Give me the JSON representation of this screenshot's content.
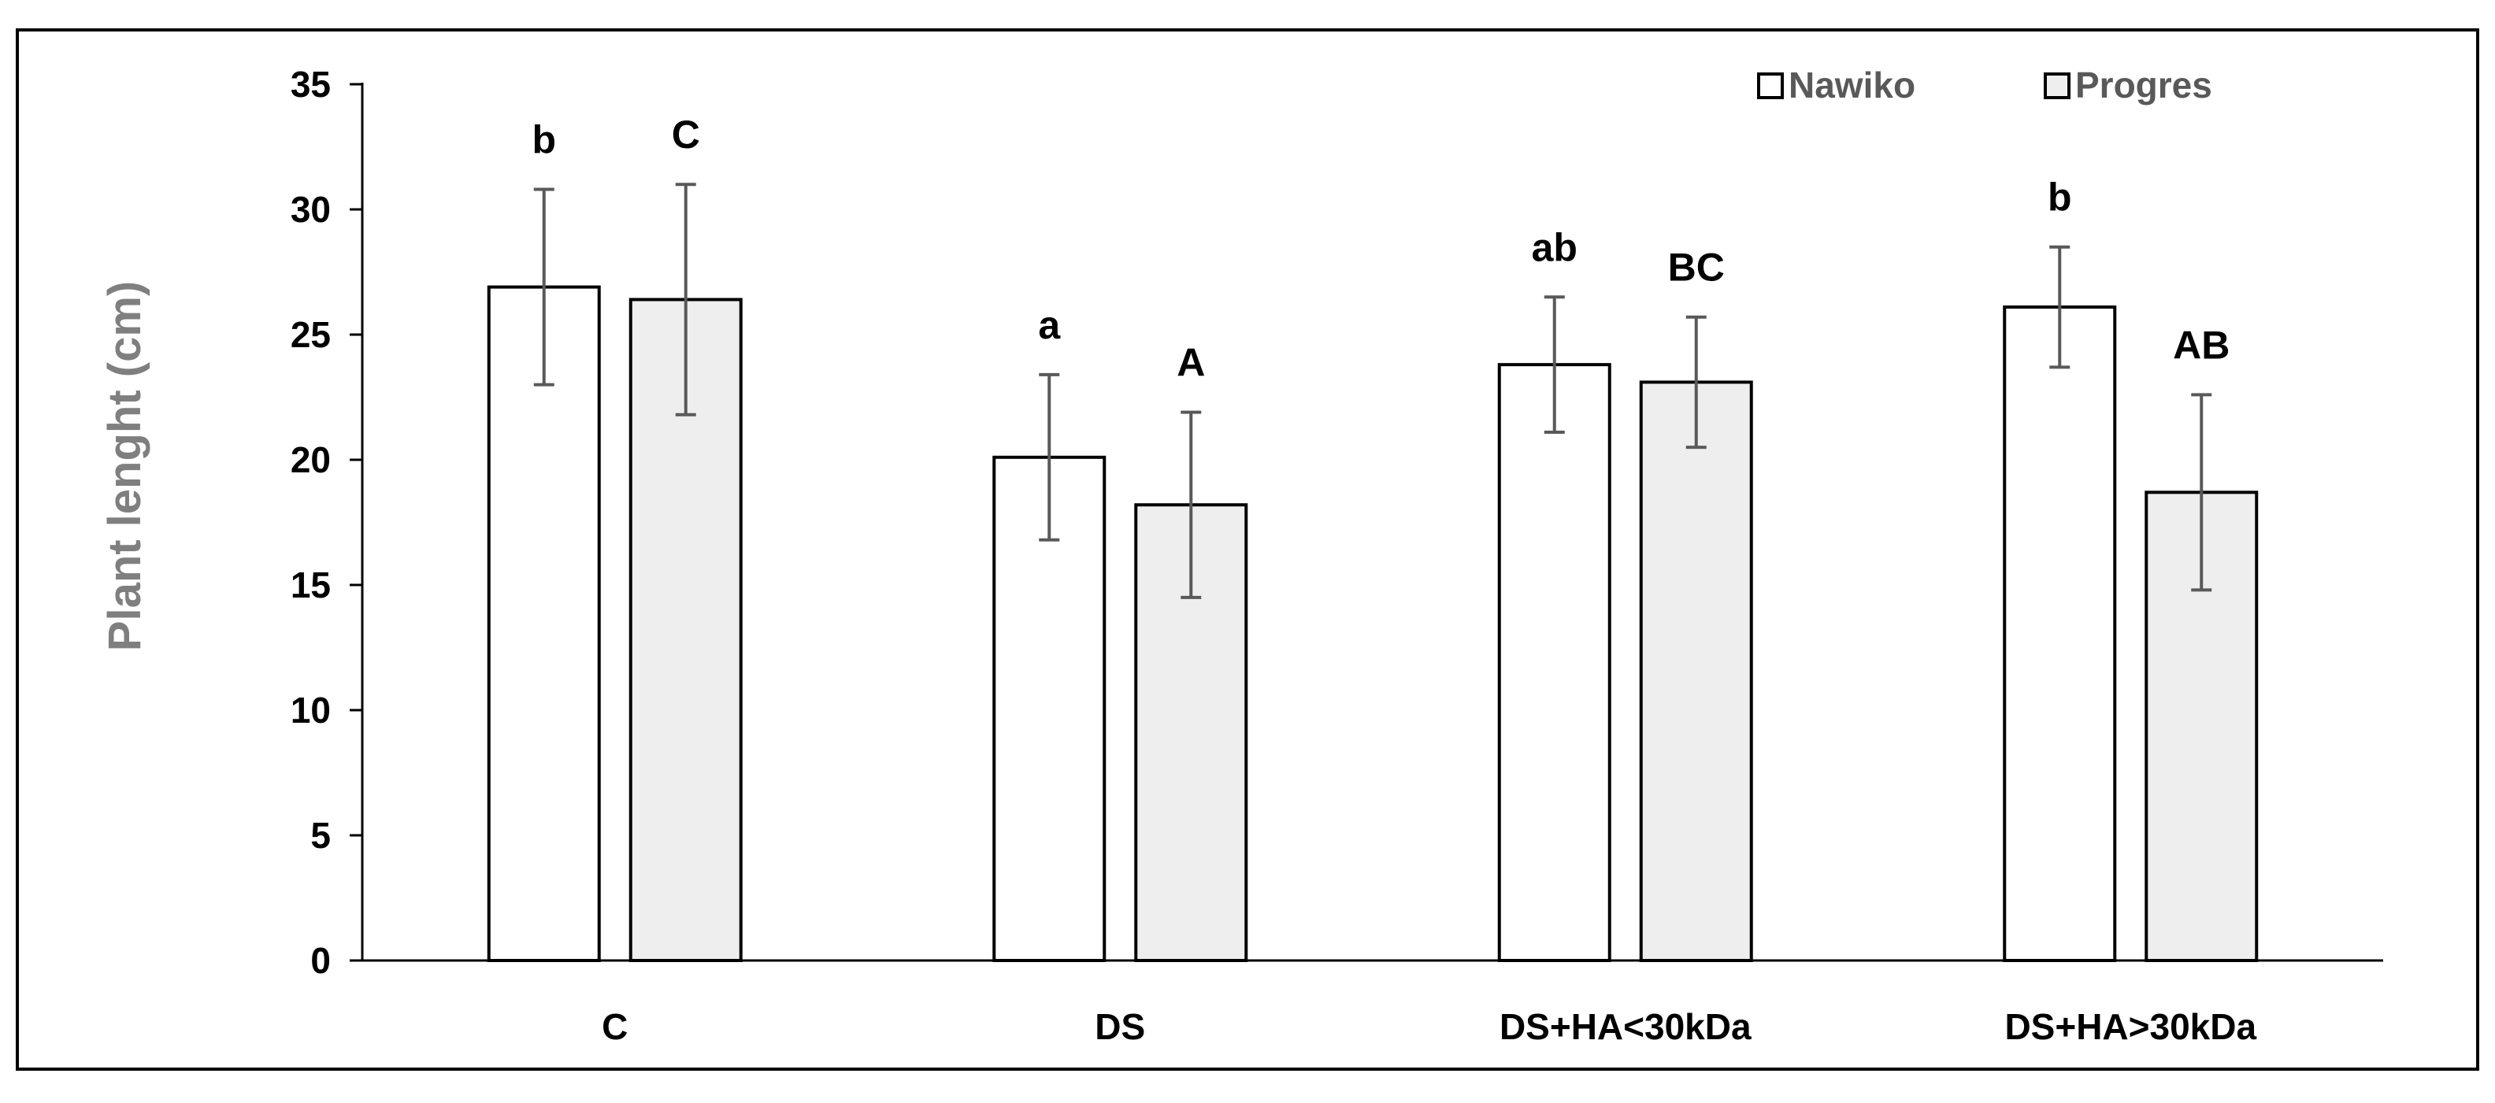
{
  "chart_data": {
    "type": "bar",
    "title": "",
    "xlabel": "",
    "ylabel": "Plant lenght (cm)",
    "ylim": [
      0,
      35
    ],
    "yticks": [
      "0",
      "5",
      "10",
      "15",
      "20",
      "25",
      "30",
      "35"
    ],
    "grid": false,
    "legend_position": "top-right",
    "categories": [
      "C",
      "DS",
      "DS+HA<30kDa",
      "DS+HA>30kDa"
    ],
    "series": [
      {
        "name": "Nawiko",
        "color": "#ffffff",
        "values": [
          26.9,
          20.1,
          23.8,
          26.1
        ],
        "errors": [
          3.9,
          3.3,
          2.7,
          2.4
        ],
        "letters": [
          "b",
          "a",
          "ab",
          "b"
        ]
      },
      {
        "name": "Progres",
        "color": "#eeeeee",
        "values": [
          26.4,
          18.2,
          23.1,
          18.7
        ],
        "errors": [
          4.6,
          3.7,
          2.6,
          3.9
        ],
        "letters": [
          "C",
          "A",
          "BC",
          "AB"
        ]
      }
    ]
  }
}
